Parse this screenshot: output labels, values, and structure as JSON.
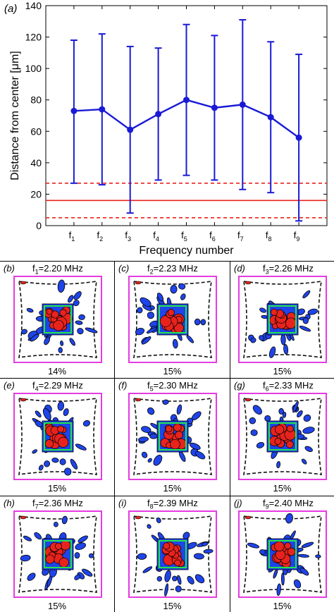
{
  "panel_a": {
    "label": "(a)"
  },
  "chart_data": {
    "type": "line",
    "xlabel": "Frequency number",
    "ylabel": "Distance from center  [μm]",
    "ylim": [
      0,
      140
    ],
    "yticks": [
      0,
      20,
      40,
      60,
      80,
      100,
      120,
      140
    ],
    "categories": [
      "f1",
      "f2",
      "f3",
      "f4",
      "f5",
      "f6",
      "f7",
      "f8",
      "f9"
    ],
    "tick_labels": [
      {
        "base": "f",
        "sub": "1"
      },
      {
        "base": "f",
        "sub": "2"
      },
      {
        "base": "f",
        "sub": "3"
      },
      {
        "base": "f",
        "sub": "4"
      },
      {
        "base": "f",
        "sub": "5"
      },
      {
        "base": "f",
        "sub": "6"
      },
      {
        "base": "f",
        "sub": "7"
      },
      {
        "base": "f",
        "sub": "8"
      },
      {
        "base": "f",
        "sub": "9"
      }
    ],
    "series": [
      {
        "values": [
          73,
          74,
          61,
          71,
          80,
          75,
          77,
          69,
          56
        ],
        "error_low": [
          27,
          26,
          8,
          29,
          32,
          29,
          23,
          21,
          3
        ],
        "error_high": [
          118,
          122,
          114,
          113,
          128,
          121,
          131,
          117,
          109
        ],
        "color": "#1a1ad6"
      }
    ],
    "reference_lines": [
      {
        "value": 16,
        "style": "solid",
        "color": "#e8231d"
      },
      {
        "value": 27,
        "style": "dashed",
        "color": "#e8231d"
      },
      {
        "value": 5,
        "style": "dashed",
        "color": "#e8231d"
      }
    ],
    "grid": false
  },
  "panels": [
    {
      "label": "(b)",
      "freq_base": "f",
      "freq_sub": "1",
      "freq_value": "=2.20 MHz",
      "percent": "14%"
    },
    {
      "label": "(c)",
      "freq_base": "f",
      "freq_sub": "2",
      "freq_value": "=2.23 MHz",
      "percent": "15%"
    },
    {
      "label": "(d)",
      "freq_base": "f",
      "freq_sub": "3",
      "freq_value": "=2.26 MHz",
      "percent": "15%"
    },
    {
      "label": "(e)",
      "freq_base": "f",
      "freq_sub": "4",
      "freq_value": "=2.29 MHz",
      "percent": "15%"
    },
    {
      "label": "(f)",
      "freq_base": "f",
      "freq_sub": "5",
      "freq_value": "=2.30 MHz",
      "percent": "15%"
    },
    {
      "label": "(g)",
      "freq_base": "f",
      "freq_sub": "6",
      "freq_value": "=2.33 MHz",
      "percent": "15%"
    },
    {
      "label": "(h)",
      "freq_base": "f",
      "freq_sub": "7",
      "freq_value": "=2.36 MHz",
      "percent": "15%"
    },
    {
      "label": "(i)",
      "freq_base": "f",
      "freq_sub": "8",
      "freq_value": "=2.39 MHz",
      "percent": "15%"
    },
    {
      "label": "(j)",
      "freq_base": "f",
      "freq_sub": "9",
      "freq_value": "=2.40 MHz",
      "percent": "15%"
    }
  ],
  "colors": {
    "blob_blue": "#1f44e8",
    "blob_red": "#e8231d",
    "square_green": "#22e34a",
    "border_magenta": "#e43ce0"
  }
}
